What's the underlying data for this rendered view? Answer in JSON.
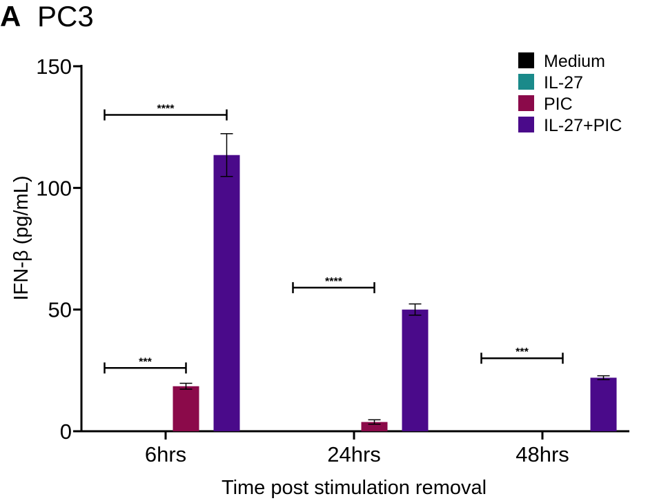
{
  "figure": {
    "panel_letter": "A",
    "panel_title": "PC3"
  },
  "chart_data": {
    "type": "bar",
    "categories": [
      "6hrs",
      "24hrs",
      "48hrs"
    ],
    "xlabel": "Time post stimulation removal",
    "ylabel": "IFN-β (pg/mL)",
    "ylim": [
      0,
      150
    ],
    "yticks": [
      0,
      50,
      100,
      150
    ],
    "grid": false,
    "legend_position": "top-right",
    "series": [
      {
        "name": "Medium",
        "color": "#000000",
        "values": [
          0,
          0,
          0
        ],
        "errors": [
          0,
          0,
          0
        ]
      },
      {
        "name": "IL-27",
        "color": "#1a8a8a",
        "values": [
          0,
          0,
          0
        ],
        "errors": [
          0,
          0,
          0
        ]
      },
      {
        "name": "PIC",
        "color": "#8b0a4a",
        "values": [
          18.5,
          3.8,
          0
        ],
        "errors": [
          1.2,
          0.9,
          0
        ]
      },
      {
        "name": "IL-27+PIC",
        "color": "#4a0a8a",
        "values": [
          113.5,
          50,
          22
        ],
        "errors": [
          8.8,
          2.3,
          0.8
        ]
      }
    ],
    "annotations": [
      {
        "text": "****",
        "category": "6hrs",
        "from_series": "Medium",
        "to_series": "IL-27+PIC",
        "y": 130
      },
      {
        "text": "***",
        "category": "6hrs",
        "from_series": "Medium",
        "to_series": "PIC",
        "y": 26
      },
      {
        "text": "****",
        "category": "24hrs",
        "from_series": "Medium",
        "to_series": "PIC",
        "y": 59
      },
      {
        "text": "***",
        "category": "48hrs",
        "from_series": "Medium",
        "to_series": "PIC",
        "y": 30
      }
    ]
  }
}
